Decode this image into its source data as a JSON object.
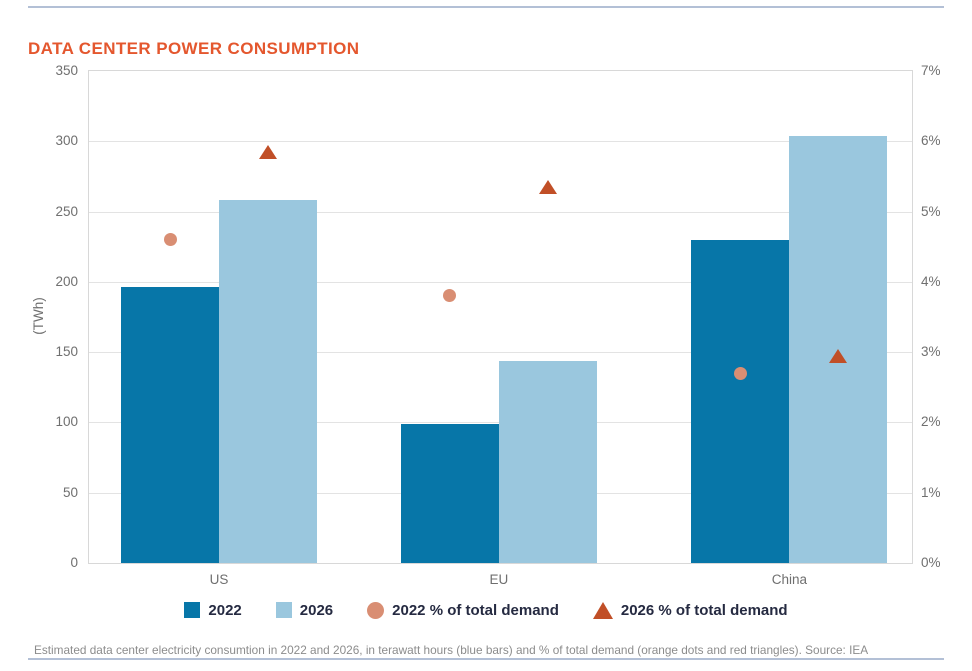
{
  "page": {
    "caption": "Estimated data center electricity consumtion in 2022 and 2026, in terawatt hours (blue bars) and % of total demand (orange dots and red triangles). Source: IEA"
  },
  "chart_data": {
    "type": "bar",
    "title": "DATA CENTER POWER CONSUMPTION",
    "categories": [
      "US",
      "EU",
      "China"
    ],
    "series": [
      {
        "name": "2022",
        "type": "bar",
        "axis": "left",
        "marker": "square",
        "color": "#0776A8",
        "values": [
          196,
          99,
          230
        ]
      },
      {
        "name": "2026",
        "type": "bar",
        "axis": "left",
        "marker": "square",
        "color": "#9AC7DE",
        "values": [
          258,
          144,
          304
        ]
      },
      {
        "name": "2022 % of total demand",
        "type": "scatter",
        "axis": "right",
        "marker": "circle",
        "color": "#D98E73",
        "values": [
          4.6,
          3.8,
          2.7
        ]
      },
      {
        "name": "2026 % of total demand",
        "type": "scatter",
        "axis": "right",
        "marker": "triangle",
        "color": "#C14F27",
        "values": [
          5.85,
          5.35,
          2.95
        ]
      }
    ],
    "left_axis": {
      "label": "(TWh)",
      "min": 0,
      "max": 350,
      "step": 50,
      "ticks": [
        "0",
        "50",
        "100",
        "150",
        "200",
        "250",
        "300",
        "350"
      ]
    },
    "right_axis": {
      "min": 0,
      "max": 7,
      "step": 1,
      "ticks": [
        "0%",
        "1%",
        "2%",
        "3%",
        "4%",
        "5%",
        "6%",
        "7%"
      ]
    },
    "grid": true,
    "legend_position": "bottom"
  },
  "theme": {
    "title_color": "#E4572E",
    "rule_color": "#B3C0D6",
    "grid_color": "#E3E3E3",
    "axis_text": "#6F6F6F",
    "legend_text": "#252A41",
    "caption_text": "#8C8C8C"
  }
}
